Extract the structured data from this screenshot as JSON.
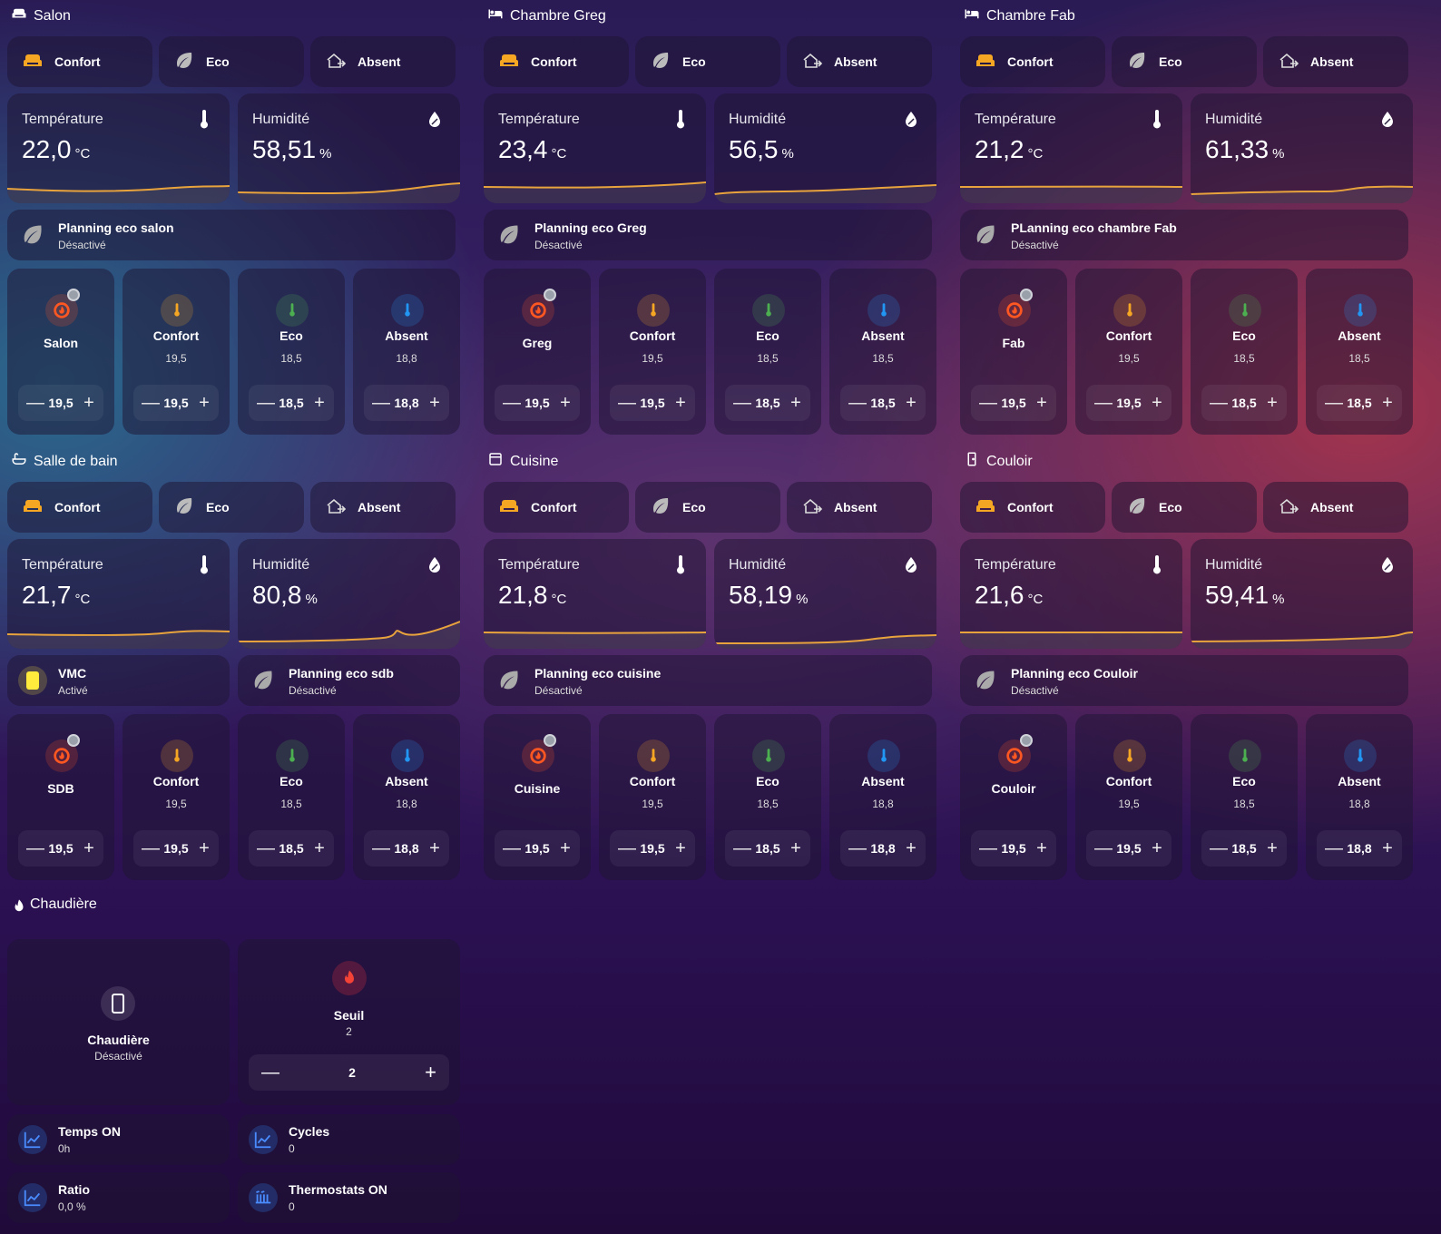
{
  "modes": {
    "confort": "Confort",
    "eco": "Eco",
    "absent": "Absent"
  },
  "labels": {
    "temperature": "Température",
    "humidity": "Humidité",
    "temp_unit": "°C",
    "hum_unit": "%"
  },
  "rooms": [
    {
      "title": "Salon",
      "temp": "22,0",
      "hum": "58,51",
      "planning": "Planning eco salon",
      "planning_state": "Désactivé",
      "thermostats": [
        {
          "name": "Salon",
          "setpoint": "19,5"
        },
        {
          "name": "Confort",
          "value": "19,5",
          "setpoint": "19,5"
        },
        {
          "name": "Eco",
          "value": "18,5",
          "setpoint": "18,5"
        },
        {
          "name": "Absent",
          "value": "18,8",
          "setpoint": "18,8"
        }
      ]
    },
    {
      "title": "Chambre Greg",
      "temp": "23,4",
      "hum": "56,5",
      "planning": "Planning eco Greg",
      "planning_state": "Désactivé",
      "thermostats": [
        {
          "name": "Greg",
          "setpoint": "19,5"
        },
        {
          "name": "Confort",
          "value": "19,5",
          "setpoint": "19,5"
        },
        {
          "name": "Eco",
          "value": "18,5",
          "setpoint": "18,5"
        },
        {
          "name": "Absent",
          "value": "18,5",
          "setpoint": "18,5"
        }
      ]
    },
    {
      "title": "Chambre Fab",
      "temp": "21,2",
      "hum": "61,33",
      "planning": "PLanning eco chambre Fab",
      "planning_state": "Désactivé",
      "thermostats": [
        {
          "name": "Fab",
          "setpoint": "19,5"
        },
        {
          "name": "Confort",
          "value": "19,5",
          "setpoint": "19,5"
        },
        {
          "name": "Eco",
          "value": "18,5",
          "setpoint": "18,5"
        },
        {
          "name": "Absent",
          "value": "18,5",
          "setpoint": "18,5"
        }
      ]
    },
    {
      "title": "Salle de bain",
      "temp": "21,7",
      "hum": "80,8",
      "vmc": "VMC",
      "vmc_state": "Activé",
      "planning": "Planning eco sdb",
      "planning_state": "Désactivé",
      "thermostats": [
        {
          "name": "SDB",
          "setpoint": "19,5"
        },
        {
          "name": "Confort",
          "value": "19,5",
          "setpoint": "19,5"
        },
        {
          "name": "Eco",
          "value": "18,5",
          "setpoint": "18,5"
        },
        {
          "name": "Absent",
          "value": "18,8",
          "setpoint": "18,8"
        }
      ]
    },
    {
      "title": "Cuisine",
      "temp": "21,8",
      "hum": "58,19",
      "planning": "Planning eco cuisine",
      "planning_state": "Désactivé",
      "thermostats": [
        {
          "name": "Cuisine",
          "setpoint": "19,5"
        },
        {
          "name": "Confort",
          "value": "19,5",
          "setpoint": "19,5"
        },
        {
          "name": "Eco",
          "value": "18,5",
          "setpoint": "18,5"
        },
        {
          "name": "Absent",
          "value": "18,8",
          "setpoint": "18,8"
        }
      ]
    },
    {
      "title": "Couloir",
      "temp": "21,6",
      "hum": "59,41",
      "planning": "Planning eco Couloir",
      "planning_state": "Désactivé",
      "thermostats": [
        {
          "name": "Couloir",
          "setpoint": "19,5"
        },
        {
          "name": "Confort",
          "value": "19,5",
          "setpoint": "19,5"
        },
        {
          "name": "Eco",
          "value": "18,5",
          "setpoint": "18,5"
        },
        {
          "name": "Absent",
          "value": "18,8",
          "setpoint": "18,8"
        }
      ]
    }
  ],
  "boiler": {
    "title": "Chaudière",
    "name": "Chaudière",
    "state": "Désactivé",
    "seuil_label": "Seuil",
    "seuil_value": "2",
    "seuil_setpoint": "2",
    "temps_on_label": "Temps ON",
    "temps_on": "0h",
    "cycles_label": "Cycles",
    "cycles": "0",
    "ratio_label": "Ratio",
    "ratio": "0,0 %",
    "thermostats_on_label": "Thermostats ON",
    "thermostats_on": "0"
  },
  "colors": {
    "accent_orange": "#f39c12",
    "graph_line": "#e8a33d",
    "confort": "#f5a623",
    "eco": "#4caf50",
    "absent": "#2196f3",
    "heat": "#ff5722",
    "vmc": "#ffeb3b"
  }
}
